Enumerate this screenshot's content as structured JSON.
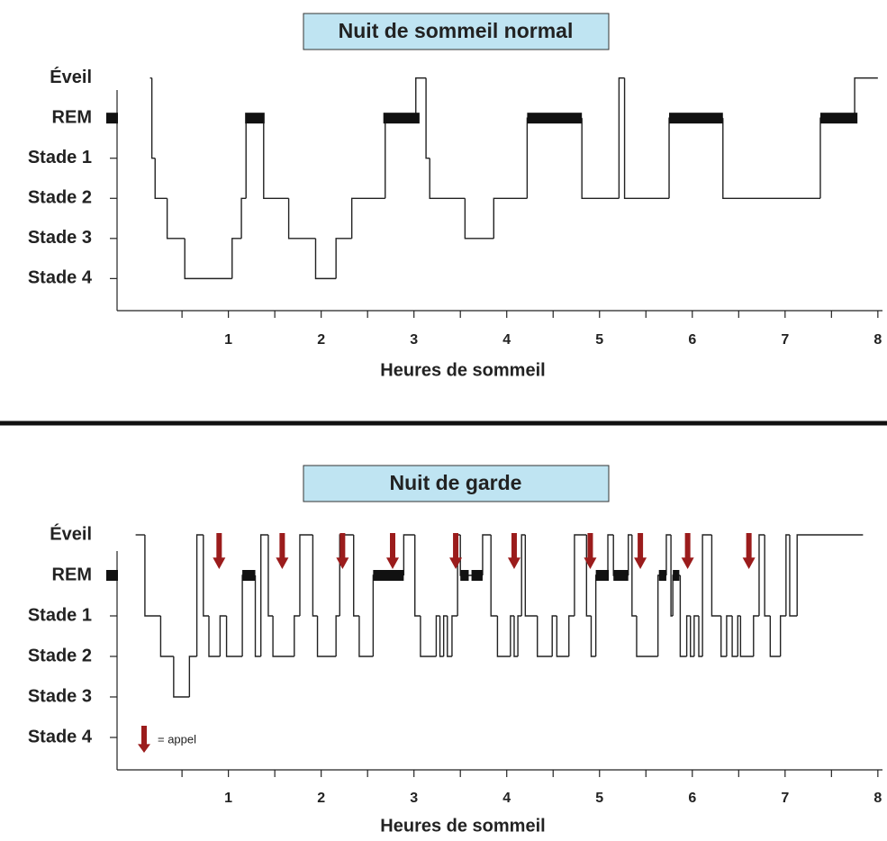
{
  "chart_data": [
    {
      "type": "step",
      "title": "Nuit de sommeil normal",
      "xlabel": "Heures de sommeil",
      "x": [
        0.155,
        0.175,
        0.21,
        0.34,
        0.53,
        1.04,
        1.14,
        1.19,
        1.38,
        1.65,
        1.94,
        2.16,
        2.33,
        2.69,
        3.02,
        3.13,
        3.17,
        3.55,
        3.86,
        4.22,
        4.81,
        5.21,
        5.27,
        5.75,
        6.33,
        7.38,
        7.75,
        8.0
      ],
      "values": [
        5,
        3,
        2,
        1,
        0,
        1,
        2,
        4,
        2,
        1,
        0,
        1,
        2,
        4,
        5,
        3,
        2,
        1,
        2,
        4,
        2,
        5,
        2,
        4,
        2,
        4,
        5,
        5
      ],
      "rem_periods": [
        [
          1.18,
          1.39
        ],
        [
          2.67,
          3.06
        ],
        [
          4.22,
          4.81
        ],
        [
          5.75,
          6.33
        ],
        [
          7.38,
          7.78
        ]
      ],
      "xlim": [
        -0.2,
        8.05
      ],
      "xticks": [
        1,
        2,
        3,
        4,
        5,
        6,
        7,
        8
      ],
      "xminorticks": [
        0.5,
        1.5,
        2.5,
        3.5,
        4.5,
        5.5,
        6.5,
        7.5
      ],
      "ylim": [
        -0.8,
        4.7
      ],
      "yticks": [
        {
          "value": 5,
          "label": "Éveil"
        },
        {
          "value": 4,
          "label": "REM"
        },
        {
          "value": 3,
          "label": "Stade 1"
        },
        {
          "value": 2,
          "label": "Stade 2"
        },
        {
          "value": 1,
          "label": "Stade 3"
        },
        {
          "value": 0,
          "label": "Stade 4"
        }
      ],
      "color": "#222222"
    },
    {
      "type": "step",
      "title": "Nuit de garde",
      "xlabel": "Heures de sommeil",
      "x": [
        0,
        0.1,
        0.27,
        0.41,
        0.58,
        0.66,
        0.73,
        0.79,
        0.91,
        0.98,
        1.15,
        1.29,
        1.35,
        1.43,
        1.48,
        1.71,
        1.77,
        1.91,
        1.96,
        2.16,
        2.2,
        2.35,
        2.41,
        2.56,
        2.89,
        3.01,
        3.07,
        3.24,
        3.28,
        3.32,
        3.36,
        3.41,
        3.47,
        3.5,
        3.74,
        3.83,
        3.9,
        4.04,
        4.08,
        4.12,
        4.16,
        4.2,
        4.33,
        4.49,
        4.54,
        4.67,
        4.73,
        4.86,
        4.91,
        4.96,
        5.09,
        5.15,
        5.31,
        5.35,
        5.4,
        5.63,
        5.72,
        5.77,
        5.79,
        5.87,
        5.94,
        5.98,
        6.02,
        6.07,
        6.11,
        6.21,
        6.31,
        6.37,
        6.43,
        6.49,
        6.52,
        6.66,
        6.72,
        6.78,
        6.84,
        6.95,
        7.01,
        7.05,
        7.13,
        7.84
      ],
      "values": [
        5,
        3,
        2,
        1,
        2,
        5,
        3,
        2,
        3,
        2,
        4,
        2,
        5,
        3,
        2,
        3,
        5,
        3,
        2,
        3,
        5,
        3,
        2,
        4,
        5,
        3,
        2,
        3,
        2,
        3,
        2,
        3,
        5,
        4,
        5,
        3,
        2,
        3,
        2,
        3,
        5,
        3,
        2,
        3,
        2,
        3,
        5,
        3,
        2,
        4,
        5,
        4,
        5,
        3,
        2,
        4,
        5,
        3,
        4,
        2,
        3,
        2,
        3,
        2,
        5,
        3,
        2,
        3,
        2,
        3,
        2,
        3,
        5,
        3,
        2,
        3,
        5,
        3,
        5,
        5
      ],
      "rem_periods": [
        [
          1.15,
          1.29
        ],
        [
          2.56,
          2.89
        ],
        [
          3.5,
          3.59
        ],
        [
          3.62,
          3.74
        ],
        [
          4.96,
          5.1
        ],
        [
          5.15,
          5.31
        ],
        [
          5.64,
          5.72
        ],
        [
          5.79,
          5.86
        ]
      ],
      "calls": [
        0.9,
        1.58,
        2.23,
        2.77,
        3.45,
        4.08,
        4.9,
        5.44,
        5.95,
        6.61
      ],
      "calls_color": "#9b1c1c",
      "calls_label": "= appel",
      "xlim": [
        -0.2,
        8.05
      ],
      "xticks": [
        1,
        2,
        3,
        4,
        5,
        6,
        7,
        8
      ],
      "xminorticks": [
        0.5,
        1.5,
        2.5,
        3.5,
        4.5,
        5.5,
        6.5,
        7.5
      ],
      "ylim": [
        -0.8,
        4.6
      ],
      "yticks": [
        {
          "value": 5,
          "label": "Éveil"
        },
        {
          "value": 4,
          "label": "REM"
        },
        {
          "value": 3,
          "label": "Stade 1"
        },
        {
          "value": 2,
          "label": "Stade 2"
        },
        {
          "value": 1,
          "label": "Stade 3"
        },
        {
          "value": 0,
          "label": "Stade 4"
        }
      ],
      "color": "#222222"
    }
  ]
}
